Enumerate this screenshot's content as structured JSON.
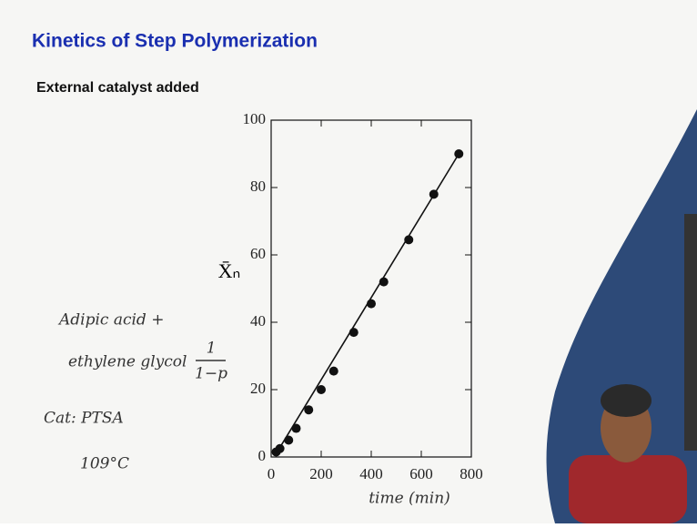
{
  "slide": {
    "title": "Kinetics of Step Polymerization",
    "subtitle": "External catalyst added",
    "notes": [
      "Adipic acid +",
      "ethylene glycol",
      "1",
      "1−p",
      "Cat: PTSA",
      "109°C"
    ]
  },
  "chart_data": {
    "type": "scatter",
    "xlabel": "time (min)",
    "ylabel": "X̄ₙ",
    "x": [
      20,
      35,
      70,
      100,
      150,
      200,
      250,
      330,
      400,
      450,
      550,
      650,
      750
    ],
    "values": [
      1.5,
      2.5,
      5,
      8.5,
      14,
      20,
      25.5,
      37,
      45.5,
      52,
      64.5,
      78,
      90
    ],
    "fit": {
      "x": [
        20,
        750
      ],
      "values": [
        1,
        90
      ]
    },
    "color": "#111111",
    "xlim": [
      0,
      800
    ],
    "xticks": [
      0,
      200,
      400,
      600,
      800
    ],
    "ylim": [
      0,
      100
    ],
    "yticks": [
      0,
      20,
      40,
      60,
      80,
      100
    ]
  }
}
